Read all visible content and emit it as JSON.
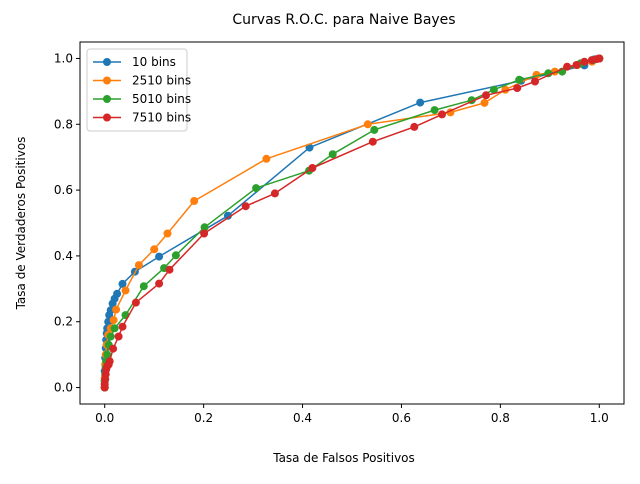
{
  "chart_data": {
    "type": "line",
    "title": "Curvas R.O.C. para Naive Bayes",
    "xlabel": "Tasa de Falsos Positivos",
    "ylabel": "Tasa de Verdaderos Positivos",
    "xlim": [
      -0.05,
      1.05
    ],
    "ylim": [
      -0.05,
      1.05
    ],
    "xticks": [
      "0.0",
      "0.2",
      "0.4",
      "0.6",
      "0.8",
      "1.0"
    ],
    "yticks": [
      "0.0",
      "0.2",
      "0.4",
      "0.6",
      "0.8",
      "1.0"
    ],
    "grid": false,
    "legend_position": "top-left",
    "series": [
      {
        "name": "10 bins",
        "color": "#1f77b4",
        "x": [
          0.0,
          0.0,
          0.0,
          0.001,
          0.002,
          0.003,
          0.004,
          0.005,
          0.007,
          0.009,
          0.012,
          0.016,
          0.02,
          0.025,
          0.036,
          0.061,
          0.11,
          0.249,
          0.414,
          0.638,
          0.842,
          0.97,
          0.99,
          1.0
        ],
        "y": [
          0.0,
          0.02,
          0.05,
          0.09,
          0.12,
          0.145,
          0.165,
          0.18,
          0.2,
          0.22,
          0.235,
          0.255,
          0.27,
          0.285,
          0.315,
          0.352,
          0.398,
          0.522,
          0.729,
          0.866,
          0.932,
          0.979,
          0.997,
          1.0
        ]
      },
      {
        "name": "2510 bins",
        "color": "#ff7f0e",
        "x": [
          0.0,
          0.0,
          0.001,
          0.002,
          0.004,
          0.007,
          0.012,
          0.018,
          0.023,
          0.042,
          0.069,
          0.1,
          0.127,
          0.181,
          0.327,
          0.532,
          0.699,
          0.768,
          0.81,
          0.873,
          0.91,
          0.956,
          0.985,
          1.0
        ],
        "y": [
          0.0,
          0.03,
          0.07,
          0.1,
          0.13,
          0.16,
          0.18,
          0.205,
          0.237,
          0.295,
          0.372,
          0.42,
          0.468,
          0.567,
          0.695,
          0.8,
          0.836,
          0.865,
          0.905,
          0.95,
          0.96,
          0.98,
          0.99,
          1.0
        ]
      },
      {
        "name": "5010 bins",
        "color": "#2ca02c",
        "x": [
          0.0,
          0.0,
          0.001,
          0.002,
          0.003,
          0.005,
          0.008,
          0.012,
          0.02,
          0.042,
          0.079,
          0.12,
          0.144,
          0.202,
          0.306,
          0.413,
          0.461,
          0.545,
          0.667,
          0.742,
          0.787,
          0.838,
          0.897,
          0.925,
          0.962,
          0.988,
          1.0
        ],
        "y": [
          0.0,
          0.02,
          0.04,
          0.06,
          0.08,
          0.1,
          0.13,
          0.155,
          0.18,
          0.22,
          0.308,
          0.363,
          0.402,
          0.487,
          0.606,
          0.659,
          0.709,
          0.783,
          0.843,
          0.873,
          0.905,
          0.935,
          0.955,
          0.96,
          0.985,
          0.995,
          1.0
        ]
      },
      {
        "name": "7510 bins",
        "color": "#d62728",
        "x": [
          0.0,
          0.0,
          0.001,
          0.002,
          0.003,
          0.005,
          0.008,
          0.01,
          0.017,
          0.028,
          0.036,
          0.063,
          0.11,
          0.131,
          0.201,
          0.285,
          0.344,
          0.42,
          0.542,
          0.626,
          0.682,
          0.771,
          0.834,
          0.87,
          0.935,
          0.954,
          0.97,
          0.985,
          0.995,
          1.0
        ],
        "y": [
          0.0,
          0.01,
          0.025,
          0.04,
          0.055,
          0.065,
          0.07,
          0.08,
          0.118,
          0.155,
          0.185,
          0.258,
          0.316,
          0.358,
          0.468,
          0.551,
          0.59,
          0.667,
          0.747,
          0.792,
          0.83,
          0.888,
          0.91,
          0.93,
          0.975,
          0.98,
          0.99,
          0.995,
          0.998,
          1.0
        ]
      }
    ]
  }
}
